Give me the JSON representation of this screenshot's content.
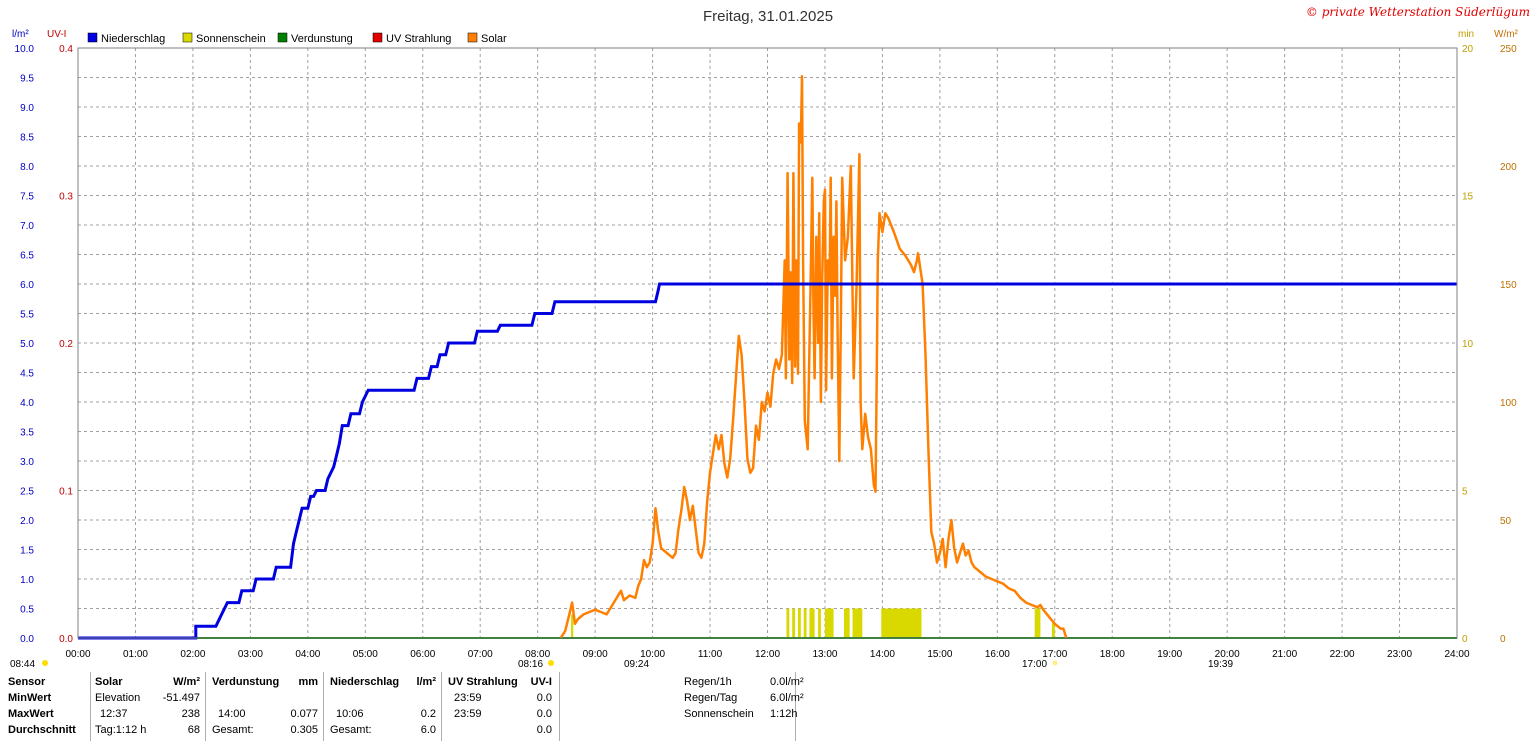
{
  "header": {
    "title": "Freitag, 31.01.2025",
    "copyright": "© private Wetterstation Süderlügum"
  },
  "axis_units": {
    "left1": "l/m²",
    "left2": "UV-I",
    "right1": "min",
    "right2": "W/m²"
  },
  "legend": [
    {
      "name": "Niederschlag",
      "color": "#0000e0"
    },
    {
      "name": "Sonnenschein",
      "color": "#d9d900"
    },
    {
      "name": "Verdunstung",
      "color": "#008000"
    },
    {
      "name": "UV Strahlung",
      "color": "#e00000"
    },
    {
      "name": "Solar",
      "color": "#ff8000"
    }
  ],
  "markers": {
    "sunrise_left": "08:44",
    "sunrise_time": "08:16",
    "sun_time_a": "09:24",
    "sunset_time": "17:00",
    "moon_time": "19:39"
  },
  "chart_data": {
    "type": "line",
    "title": "Freitag, 31.01.2025",
    "x_ticks": [
      "00:00",
      "01:00",
      "02:00",
      "03:00",
      "04:00",
      "05:00",
      "06:00",
      "07:00",
      "08:00",
      "09:00",
      "10:00",
      "11:00",
      "12:00",
      "13:00",
      "14:00",
      "15:00",
      "16:00",
      "17:00",
      "18:00",
      "19:00",
      "20:00",
      "21:00",
      "22:00",
      "23:00",
      "24:00"
    ],
    "x_range_hours": [
      0,
      24
    ],
    "axes": {
      "precip": {
        "unit": "l/m²",
        "range": [
          0,
          10
        ],
        "ticks": [
          "0.0",
          "0.5",
          "1.0",
          "1.5",
          "2.0",
          "2.5",
          "3.0",
          "3.5",
          "4.0",
          "4.5",
          "5.0",
          "5.5",
          "6.0",
          "6.5",
          "7.0",
          "7.5",
          "8.0",
          "8.5",
          "9.0",
          "9.5",
          "10.0"
        ]
      },
      "uv": {
        "unit": "UV-I",
        "range": [
          0,
          0.4
        ],
        "ticks": [
          "0.0",
          "0.1",
          "0.2",
          "0.3",
          "0.4"
        ]
      },
      "sunshine": {
        "unit": "min",
        "range": [
          0,
          20
        ],
        "ticks": [
          "0",
          "5",
          "10",
          "15",
          "20"
        ]
      },
      "solar": {
        "unit": "W/m²",
        "range": [
          0,
          250
        ],
        "ticks": [
          "0",
          "50",
          "100",
          "150",
          "200",
          "250"
        ]
      }
    },
    "grid": true,
    "series": [
      {
        "name": "Niederschlag",
        "axis": "precip",
        "color": "#0000e0",
        "style": "step",
        "points": [
          [
            0,
            0
          ],
          [
            2.05,
            0
          ],
          [
            2.05,
            0.2
          ],
          [
            2.4,
            0.2
          ],
          [
            2.5,
            0.4
          ],
          [
            2.6,
            0.6
          ],
          [
            2.8,
            0.6
          ],
          [
            2.85,
            0.8
          ],
          [
            3.05,
            0.8
          ],
          [
            3.1,
            1.0
          ],
          [
            3.4,
            1.0
          ],
          [
            3.45,
            1.2
          ],
          [
            3.7,
            1.2
          ],
          [
            3.75,
            1.6
          ],
          [
            3.8,
            1.8
          ],
          [
            3.85,
            2.0
          ],
          [
            3.9,
            2.2
          ],
          [
            4.0,
            2.2
          ],
          [
            4.05,
            2.4
          ],
          [
            4.1,
            2.4
          ],
          [
            4.15,
            2.5
          ],
          [
            4.3,
            2.5
          ],
          [
            4.35,
            2.7
          ],
          [
            4.45,
            2.9
          ],
          [
            4.5,
            3.1
          ],
          [
            4.55,
            3.3
          ],
          [
            4.6,
            3.6
          ],
          [
            4.7,
            3.6
          ],
          [
            4.75,
            3.8
          ],
          [
            4.9,
            3.8
          ],
          [
            4.95,
            4.0
          ],
          [
            5.0,
            4.1
          ],
          [
            5.05,
            4.2
          ],
          [
            5.85,
            4.2
          ],
          [
            5.9,
            4.4
          ],
          [
            6.1,
            4.4
          ],
          [
            6.15,
            4.6
          ],
          [
            6.25,
            4.6
          ],
          [
            6.3,
            4.8
          ],
          [
            6.4,
            4.8
          ],
          [
            6.45,
            5.0
          ],
          [
            6.9,
            5.0
          ],
          [
            6.95,
            5.2
          ],
          [
            7.3,
            5.2
          ],
          [
            7.35,
            5.3
          ],
          [
            7.9,
            5.3
          ],
          [
            7.95,
            5.5
          ],
          [
            8.25,
            5.5
          ],
          [
            8.3,
            5.7
          ],
          [
            10.05,
            5.7
          ],
          [
            10.1,
            5.9
          ],
          [
            10.12,
            6.0
          ],
          [
            24,
            6.0
          ]
        ]
      },
      {
        "name": "Solar",
        "axis": "solar",
        "color": "#ff8000",
        "style": "line",
        "points": [
          [
            8.4,
            0
          ],
          [
            8.48,
            3
          ],
          [
            8.55,
            10
          ],
          [
            8.6,
            15
          ],
          [
            8.65,
            6
          ],
          [
            8.7,
            8
          ],
          [
            8.8,
            10
          ],
          [
            8.9,
            11
          ],
          [
            9.0,
            12
          ],
          [
            9.1,
            11
          ],
          [
            9.2,
            10
          ],
          [
            9.3,
            14
          ],
          [
            9.4,
            18
          ],
          [
            9.45,
            20
          ],
          [
            9.5,
            16
          ],
          [
            9.6,
            18
          ],
          [
            9.7,
            17
          ],
          [
            9.75,
            22
          ],
          [
            9.8,
            25
          ],
          [
            9.85,
            33
          ],
          [
            9.9,
            30
          ],
          [
            9.95,
            32
          ],
          [
            10.0,
            40
          ],
          [
            10.05,
            55
          ],
          [
            10.1,
            45
          ],
          [
            10.15,
            38
          ],
          [
            10.25,
            36
          ],
          [
            10.35,
            34
          ],
          [
            10.4,
            36
          ],
          [
            10.45,
            46
          ],
          [
            10.5,
            54
          ],
          [
            10.55,
            64
          ],
          [
            10.6,
            58
          ],
          [
            10.65,
            50
          ],
          [
            10.7,
            56
          ],
          [
            10.75,
            46
          ],
          [
            10.8,
            36
          ],
          [
            10.85,
            34
          ],
          [
            10.9,
            40
          ],
          [
            10.95,
            58
          ],
          [
            11.0,
            70
          ],
          [
            11.05,
            78
          ],
          [
            11.1,
            86
          ],
          [
            11.15,
            80
          ],
          [
            11.2,
            86
          ],
          [
            11.25,
            74
          ],
          [
            11.3,
            68
          ],
          [
            11.35,
            76
          ],
          [
            11.4,
            92
          ],
          [
            11.45,
            110
          ],
          [
            11.5,
            128
          ],
          [
            11.55,
            120
          ],
          [
            11.6,
            100
          ],
          [
            11.65,
            76
          ],
          [
            11.7,
            70
          ],
          [
            11.75,
            72
          ],
          [
            11.8,
            90
          ],
          [
            11.85,
            84
          ],
          [
            11.9,
            100
          ],
          [
            11.95,
            96
          ],
          [
            12.0,
            104
          ],
          [
            12.05,
            98
          ],
          [
            12.1,
            112
          ],
          [
            12.15,
            118
          ],
          [
            12.2,
            114
          ],
          [
            12.25,
            120
          ],
          [
            12.3,
            160
          ],
          [
            12.32,
            110
          ],
          [
            12.35,
            197
          ],
          [
            12.38,
            118
          ],
          [
            12.4,
            155
          ],
          [
            12.43,
            108
          ],
          [
            12.45,
            197
          ],
          [
            12.48,
            115
          ],
          [
            12.5,
            160
          ],
          [
            12.53,
            112
          ],
          [
            12.55,
            218
          ],
          [
            12.58,
            210
          ],
          [
            12.6,
            238
          ],
          [
            12.62,
            160
          ],
          [
            12.65,
            92
          ],
          [
            12.7,
            80
          ],
          [
            12.72,
            110
          ],
          [
            12.75,
            150
          ],
          [
            12.78,
            195
          ],
          [
            12.8,
            140
          ],
          [
            12.82,
            110
          ],
          [
            12.85,
            170
          ],
          [
            12.88,
            125
          ],
          [
            12.9,
            180
          ],
          [
            12.93,
            100
          ],
          [
            12.95,
            150
          ],
          [
            12.98,
            185
          ],
          [
            13.0,
            190
          ],
          [
            13.02,
            105
          ],
          [
            13.05,
            160
          ],
          [
            13.08,
            150
          ],
          [
            13.1,
            195
          ],
          [
            13.12,
            110
          ],
          [
            13.15,
            170
          ],
          [
            13.18,
            145
          ],
          [
            13.2,
            185
          ],
          [
            13.22,
            130
          ],
          [
            13.25,
            75
          ],
          [
            13.28,
            140
          ],
          [
            13.3,
            195
          ],
          [
            13.35,
            160
          ],
          [
            13.4,
            170
          ],
          [
            13.45,
            200
          ],
          [
            13.5,
            110
          ],
          [
            13.55,
            150
          ],
          [
            13.6,
            205
          ],
          [
            13.62,
            100
          ],
          [
            13.65,
            80
          ],
          [
            13.7,
            95
          ],
          [
            13.75,
            85
          ],
          [
            13.8,
            80
          ],
          [
            13.85,
            65
          ],
          [
            13.88,
            62
          ],
          [
            13.9,
            110
          ],
          [
            13.92,
            160
          ],
          [
            13.95,
            180
          ],
          [
            14.0,
            172
          ],
          [
            14.05,
            180
          ],
          [
            14.1,
            178
          ],
          [
            14.2,
            172
          ],
          [
            14.3,
            165
          ],
          [
            14.4,
            162
          ],
          [
            14.5,
            158
          ],
          [
            14.55,
            155
          ],
          [
            14.6,
            160
          ],
          [
            14.62,
            163
          ],
          [
            14.65,
            158
          ],
          [
            14.7,
            150
          ],
          [
            14.75,
            120
          ],
          [
            14.8,
            80
          ],
          [
            14.85,
            45
          ],
          [
            14.9,
            40
          ],
          [
            14.95,
            32
          ],
          [
            15.0,
            36
          ],
          [
            15.05,
            42
          ],
          [
            15.1,
            30
          ],
          [
            15.15,
            42
          ],
          [
            15.2,
            50
          ],
          [
            15.25,
            38
          ],
          [
            15.3,
            32
          ],
          [
            15.35,
            36
          ],
          [
            15.4,
            40
          ],
          [
            15.45,
            35
          ],
          [
            15.5,
            37
          ],
          [
            15.55,
            32
          ],
          [
            15.6,
            30
          ],
          [
            15.7,
            28
          ],
          [
            15.8,
            26
          ],
          [
            15.9,
            25
          ],
          [
            16.0,
            24
          ],
          [
            16.1,
            23
          ],
          [
            16.2,
            21
          ],
          [
            16.3,
            20
          ],
          [
            16.4,
            17
          ],
          [
            16.5,
            15
          ],
          [
            16.6,
            14
          ],
          [
            16.7,
            13
          ],
          [
            16.75,
            14
          ],
          [
            16.8,
            12
          ],
          [
            16.9,
            9
          ],
          [
            17.0,
            6
          ],
          [
            17.05,
            5
          ],
          [
            17.1,
            4
          ],
          [
            17.15,
            4
          ],
          [
            17.2,
            0
          ]
        ]
      },
      {
        "name": "Sonnenschein",
        "axis": "sunshine",
        "color": "#d9d900",
        "style": "bars",
        "bars": [
          [
            8.58,
            8.62,
            0.8
          ],
          [
            12.33,
            12.38,
            1
          ],
          [
            12.43,
            12.48,
            1
          ],
          [
            12.53,
            12.58,
            1
          ],
          [
            12.63,
            12.68,
            1
          ],
          [
            12.73,
            12.82,
            1
          ],
          [
            12.88,
            12.93,
            1
          ],
          [
            13.0,
            13.15,
            1
          ],
          [
            13.33,
            13.43,
            1
          ],
          [
            13.48,
            13.65,
            1
          ],
          [
            13.98,
            14.68,
            1
          ],
          [
            16.65,
            16.75,
            1
          ],
          [
            16.95,
            17.0,
            0.5
          ]
        ]
      },
      {
        "name": "Verdunstung",
        "axis": "precip",
        "color": "#008000",
        "style": "line",
        "points": [
          [
            0,
            0
          ],
          [
            24,
            0
          ]
        ]
      },
      {
        "name": "UV Strahlung",
        "axis": "uv",
        "color": "#e00000",
        "style": "line",
        "points": [
          [
            0,
            0
          ],
          [
            24,
            0
          ]
        ]
      }
    ]
  },
  "stats": {
    "headers": {
      "sensor": "Sensor",
      "solar": "Solar",
      "solar_unit": "W/m²",
      "evap": "Verdunstung",
      "evap_unit": "mm",
      "precip": "Niederschlag",
      "precip_unit": "l/m²",
      "uv": "UV Strahlung",
      "uv_unit": "UV-I"
    },
    "rows": [
      {
        "label": "MinWert",
        "solar_a": "Elevation",
        "solar_b": "-51.497",
        "evap_a": "",
        "evap_b": "",
        "precip_a": "",
        "precip_b": "",
        "uv_a": "23:59",
        "uv_b": "0.0"
      },
      {
        "label": "MaxWert",
        "solar_a": "12:37",
        "solar_b": "238",
        "evap_a": "14:00",
        "evap_b": "0.077",
        "precip_a": "10:06",
        "precip_b": "0.2",
        "uv_a": "23:59",
        "uv_b": "0.0"
      },
      {
        "label": "Durchschnitt",
        "solar_a": "Tag:1:12 h",
        "solar_b": "68",
        "evap_a": "Gesamt:",
        "evap_b": "0.305",
        "precip_a": "Gesamt:",
        "precip_b": "6.0",
        "uv_a": "",
        "uv_b": "0.0"
      }
    ],
    "summary": [
      {
        "label": "Regen/1h",
        "value": "0.0l/m²"
      },
      {
        "label": "Regen/Tag",
        "value": "6.0l/m²"
      },
      {
        "label": "Sonnenschein",
        "value": "1:12h"
      }
    ]
  }
}
